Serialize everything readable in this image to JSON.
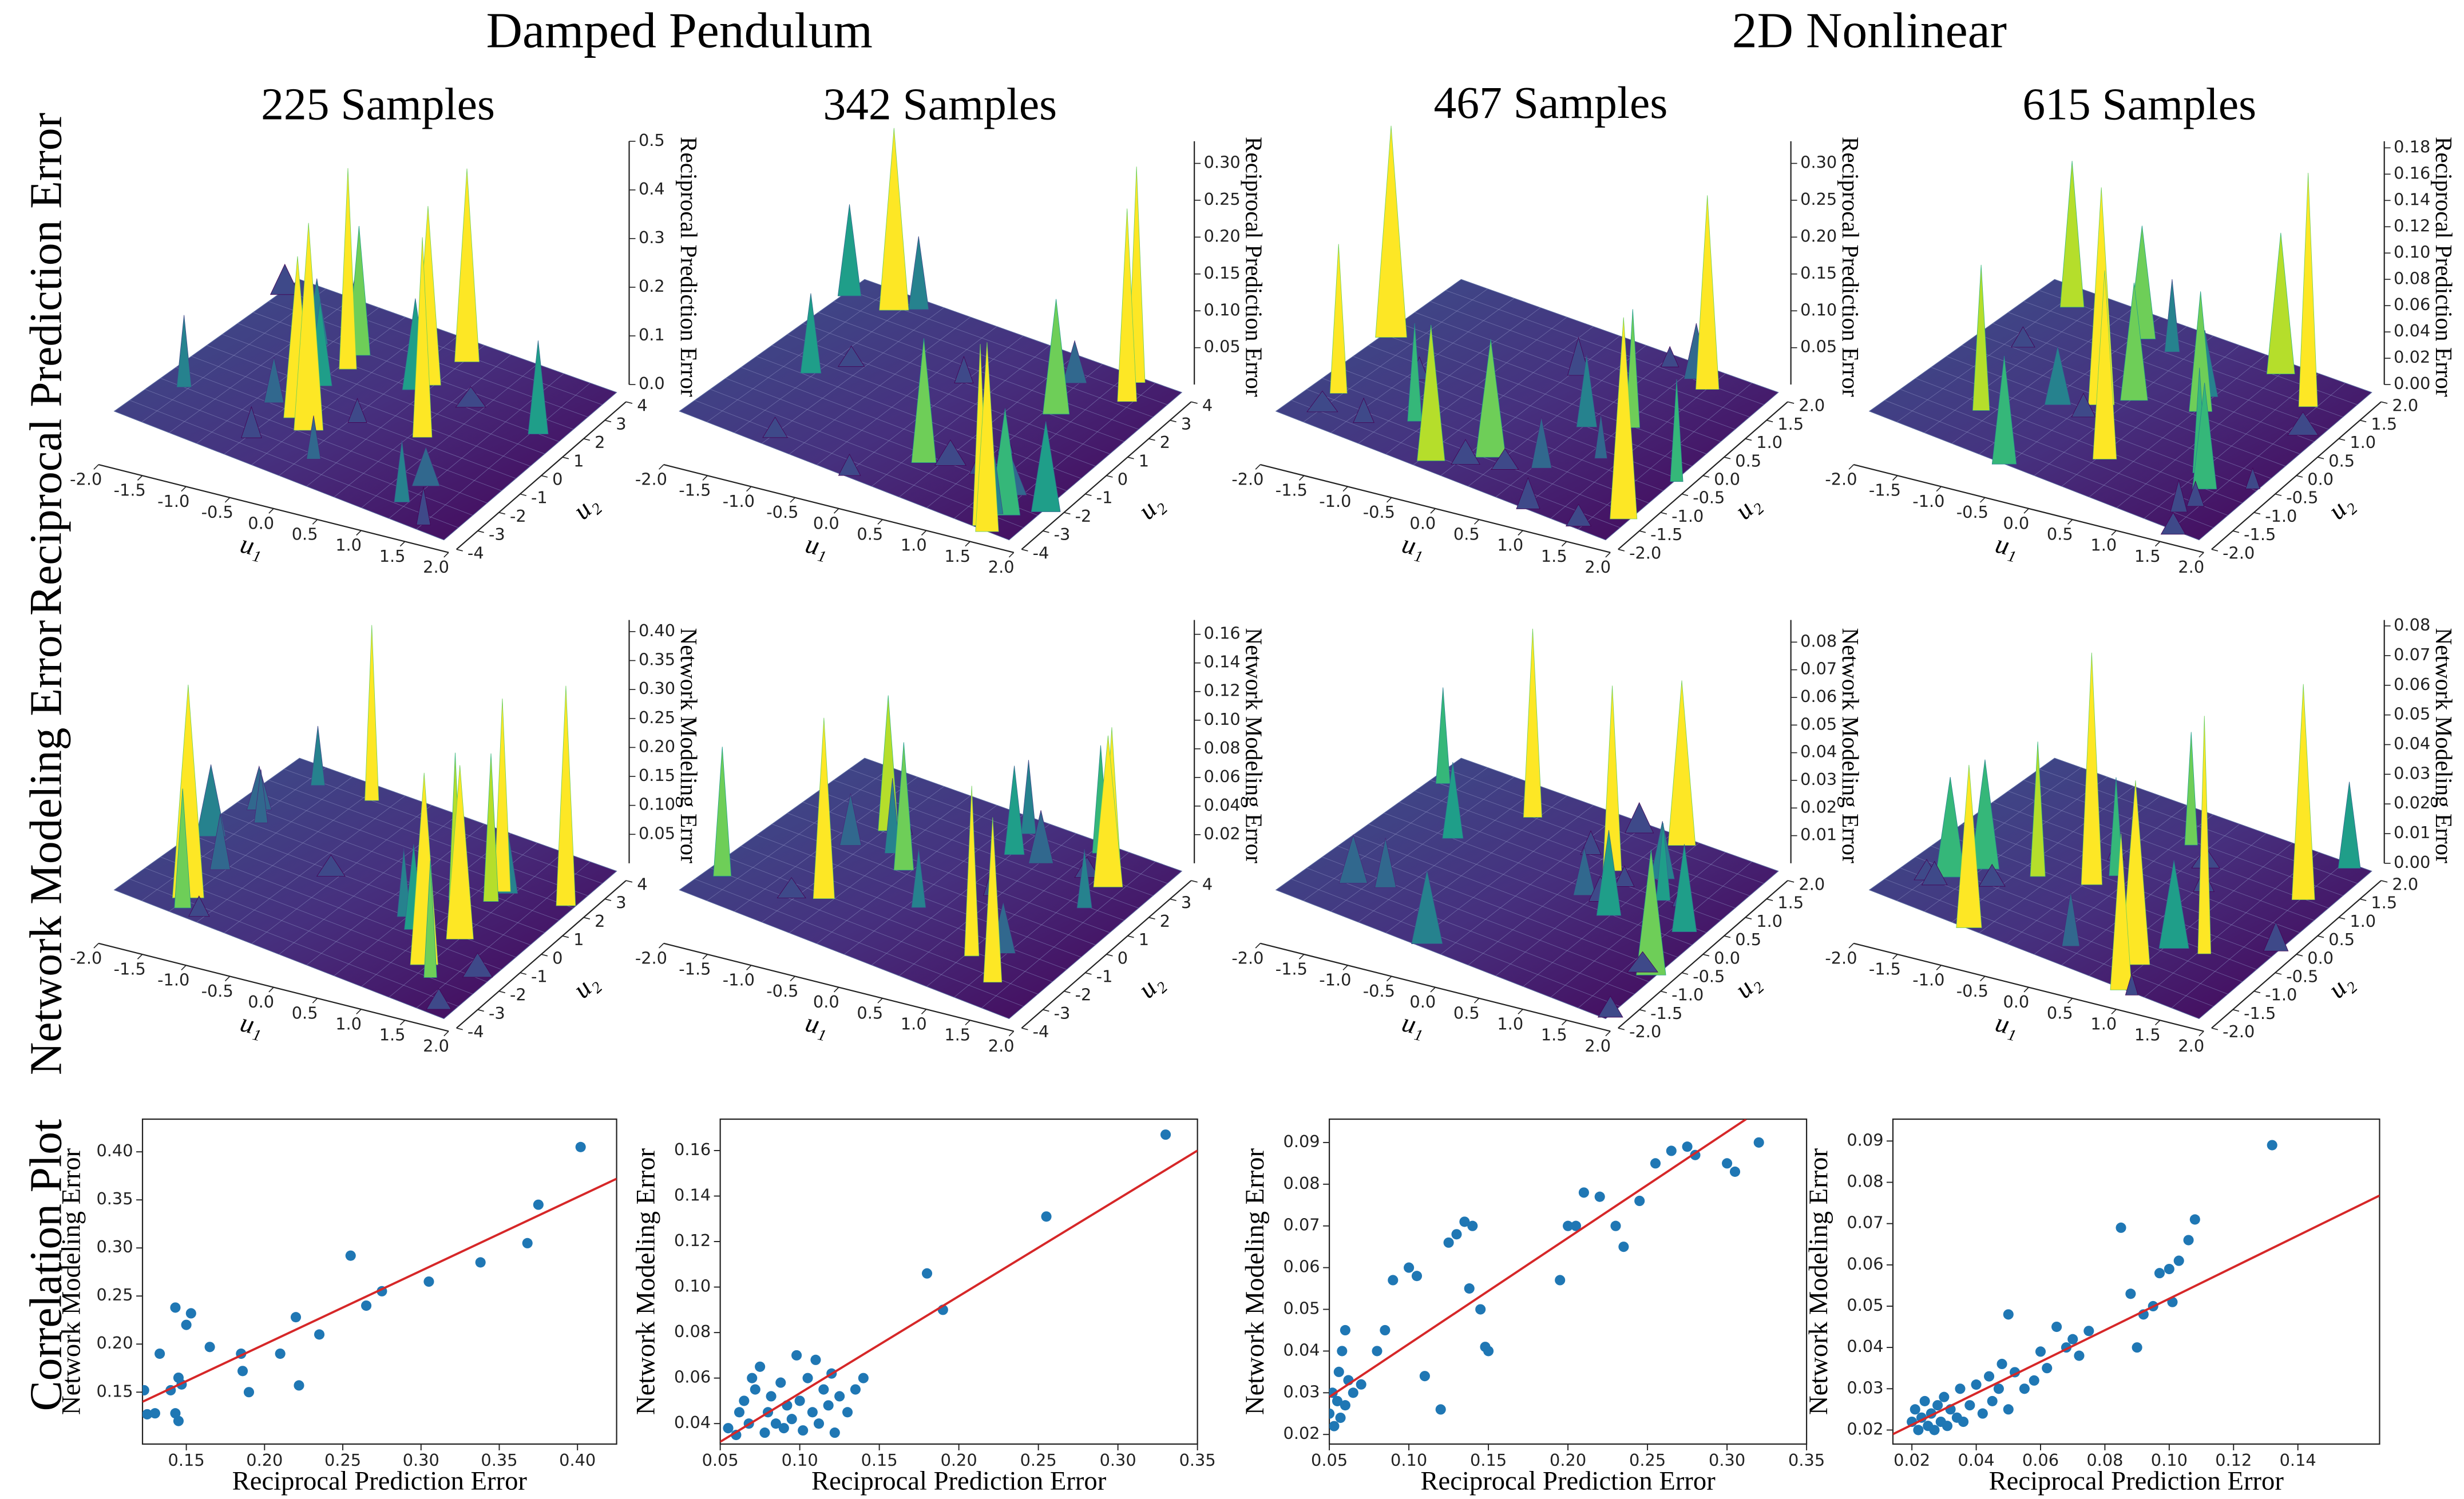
{
  "figure": {
    "group_titles": [
      "Damped Pendulum",
      "2D Nonlinear"
    ],
    "column_titles": [
      "225 Samples",
      "342 Samples",
      "467 Samples",
      "615 Samples"
    ],
    "row_labels": [
      "Reciprocal Prediction Error",
      "Network Modeling Error",
      "Correlation Plot"
    ]
  },
  "chart_data": [
    {
      "type": "surface3d",
      "colormap": "viridis",
      "xlabel": "u₁",
      "ylabel": "u₂",
      "zlabel": "Reciprocal Prediction Error",
      "xlim": [
        -2,
        2
      ],
      "ylim": [
        -4,
        4
      ],
      "zlim": [
        0,
        0.5
      ],
      "xticks": [
        {
          "value": -2,
          "label": "-2.0"
        },
        -1.5,
        {
          "value": -1,
          "label": "-1.0"
        },
        -0.5,
        {
          "value": 0,
          "label": "0.0"
        },
        0.5,
        {
          "value": 1,
          "label": "1.0"
        },
        1.5,
        {
          "value": 2,
          "label": "2.0"
        }
      ],
      "yticks": [
        -4,
        -3,
        -2,
        -1,
        0,
        1,
        2,
        3,
        4
      ],
      "zticks": [
        {
          "value": 0,
          "label": "0.0"
        },
        0.1,
        0.2,
        0.3,
        0.4,
        0.5
      ]
    },
    {
      "type": "surface3d",
      "colormap": "viridis",
      "xlabel": "u₁",
      "ylabel": "u₂",
      "zlabel": "Reciprocal Prediction Error",
      "xlim": [
        -2,
        2
      ],
      "ylim": [
        -4,
        4
      ],
      "zlim": [
        0,
        0.33
      ],
      "xticks": [
        {
          "value": -2,
          "label": "-2.0"
        },
        -1.5,
        {
          "value": -1,
          "label": "-1.0"
        },
        -0.5,
        {
          "value": 0,
          "label": "0.0"
        },
        0.5,
        {
          "value": 1,
          "label": "1.0"
        },
        1.5,
        {
          "value": 2,
          "label": "2.0"
        }
      ],
      "yticks": [
        -4,
        -3,
        -2,
        -1,
        0,
        1,
        2,
        3,
        4
      ],
      "zticks": [
        0.05,
        {
          "value": 0.1,
          "label": "0.10"
        },
        0.15,
        {
          "value": 0.2,
          "label": "0.20"
        },
        0.25,
        {
          "value": 0.3,
          "label": "0.30"
        }
      ]
    },
    {
      "type": "surface3d",
      "colormap": "viridis",
      "xlabel": "u₁",
      "ylabel": "u₂",
      "zlabel": "Reciprocal Prediction Error",
      "xlim": [
        -2,
        2
      ],
      "ylim": [
        -2,
        2
      ],
      "zlim": [
        0,
        0.33
      ],
      "xticks": [
        {
          "value": -2,
          "label": "-2.0"
        },
        -1.5,
        {
          "value": -1,
          "label": "-1.0"
        },
        -0.5,
        {
          "value": 0,
          "label": "0.0"
        },
        0.5,
        {
          "value": 1,
          "label": "1.0"
        },
        1.5,
        {
          "value": 2,
          "label": "2.0"
        }
      ],
      "yticks": [
        {
          "value": -2,
          "label": "-2.0"
        },
        -1.5,
        {
          "value": -1,
          "label": "-1.0"
        },
        -0.5,
        {
          "value": 0,
          "label": "0.0"
        },
        0.5,
        {
          "value": 1,
          "label": "1.0"
        },
        1.5,
        {
          "value": 2,
          "label": "2.0"
        }
      ],
      "zticks": [
        0.05,
        {
          "value": 0.1,
          "label": "0.10"
        },
        0.15,
        {
          "value": 0.2,
          "label": "0.20"
        },
        0.25,
        {
          "value": 0.3,
          "label": "0.30"
        }
      ]
    },
    {
      "type": "surface3d",
      "colormap": "viridis",
      "xlabel": "u₁",
      "ylabel": "u₂",
      "zlabel": "Reciprocal Prediction Error",
      "xlim": [
        -2,
        2
      ],
      "ylim": [
        -2,
        2
      ],
      "zlim": [
        0,
        0.185
      ],
      "xticks": [
        {
          "value": -2,
          "label": "-2.0"
        },
        -1.5,
        {
          "value": -1,
          "label": "-1.0"
        },
        -0.5,
        {
          "value": 0,
          "label": "0.0"
        },
        0.5,
        {
          "value": 1,
          "label": "1.0"
        },
        1.5,
        {
          "value": 2,
          "label": "2.0"
        }
      ],
      "yticks": [
        {
          "value": -2,
          "label": "-2.0"
        },
        -1.5,
        {
          "value": -1,
          "label": "-1.0"
        },
        -0.5,
        {
          "value": 0,
          "label": "0.0"
        },
        0.5,
        {
          "value": 1,
          "label": "1.0"
        },
        1.5,
        {
          "value": 2,
          "label": "2.0"
        }
      ],
      "zticks": [
        {
          "value": 0,
          "label": "0.00"
        },
        0.02,
        0.04,
        0.06,
        0.08,
        {
          "value": 0.1,
          "label": "0.10"
        },
        0.12,
        0.14,
        0.16,
        0.18
      ]
    },
    {
      "type": "surface3d",
      "colormap": "viridis",
      "xlabel": "u₁",
      "ylabel": "u₂",
      "zlabel": "Network Modeling Error",
      "xlim": [
        -2,
        2
      ],
      "ylim": [
        -4,
        4
      ],
      "zlim": [
        0,
        0.42
      ],
      "xticks": [
        {
          "value": -2,
          "label": "-2.0"
        },
        -1.5,
        {
          "value": -1,
          "label": "-1.0"
        },
        -0.5,
        {
          "value": 0,
          "label": "0.0"
        },
        0.5,
        {
          "value": 1,
          "label": "1.0"
        },
        1.5,
        {
          "value": 2,
          "label": "2.0"
        }
      ],
      "yticks": [
        -4,
        -3,
        -2,
        -1,
        0,
        1,
        2,
        3,
        4
      ],
      "zticks": [
        0.05,
        {
          "value": 0.1,
          "label": "0.10"
        },
        0.15,
        {
          "value": 0.2,
          "label": "0.20"
        },
        0.25,
        {
          "value": 0.3,
          "label": "0.30"
        },
        0.35,
        {
          "value": 0.4,
          "label": "0.40"
        }
      ]
    },
    {
      "type": "surface3d",
      "colormap": "viridis",
      "xlabel": "u₁",
      "ylabel": "u₂",
      "zlabel": "Network Modeling Error",
      "xlim": [
        -2,
        2
      ],
      "ylim": [
        -4,
        4
      ],
      "zlim": [
        0,
        0.17
      ],
      "xticks": [
        {
          "value": -2,
          "label": "-2.0"
        },
        -1.5,
        {
          "value": -1,
          "label": "-1.0"
        },
        -0.5,
        {
          "value": 0,
          "label": "0.0"
        },
        0.5,
        {
          "value": 1,
          "label": "1.0"
        },
        1.5,
        {
          "value": 2,
          "label": "2.0"
        }
      ],
      "yticks": [
        -4,
        -3,
        -2,
        -1,
        0,
        1,
        2,
        3,
        4
      ],
      "zticks": [
        0.02,
        0.04,
        0.06,
        0.08,
        {
          "value": 0.1,
          "label": "0.10"
        },
        0.12,
        0.14,
        0.16
      ]
    },
    {
      "type": "surface3d",
      "colormap": "viridis",
      "xlabel": "u₁",
      "ylabel": "u₂",
      "zlabel": "Network Modeling Error",
      "xlim": [
        -2,
        2
      ],
      "ylim": [
        -2,
        2
      ],
      "zlim": [
        0,
        0.088
      ],
      "xticks": [
        {
          "value": -2,
          "label": "-2.0"
        },
        -1.5,
        {
          "value": -1,
          "label": "-1.0"
        },
        -0.5,
        {
          "value": 0,
          "label": "0.0"
        },
        0.5,
        {
          "value": 1,
          "label": "1.0"
        },
        1.5,
        {
          "value": 2,
          "label": "2.0"
        }
      ],
      "yticks": [
        {
          "value": -2,
          "label": "-2.0"
        },
        -1.5,
        {
          "value": -1,
          "label": "-1.0"
        },
        -0.5,
        {
          "value": 0,
          "label": "0.0"
        },
        0.5,
        {
          "value": 1,
          "label": "1.0"
        },
        1.5,
        {
          "value": 2,
          "label": "2.0"
        }
      ],
      "zticks": [
        0.01,
        0.02,
        0.03,
        0.04,
        0.05,
        0.06,
        0.07,
        0.08
      ]
    },
    {
      "type": "surface3d",
      "colormap": "viridis",
      "xlabel": "u₁",
      "ylabel": "u₂",
      "zlabel": "Network Modeling Error",
      "xlim": [
        -2,
        2
      ],
      "ylim": [
        -2,
        2
      ],
      "zlim": [
        0,
        0.082
      ],
      "xticks": [
        {
          "value": -2,
          "label": "-2.0"
        },
        -1.5,
        {
          "value": -1,
          "label": "-1.0"
        },
        -0.5,
        {
          "value": 0,
          "label": "0.0"
        },
        0.5,
        {
          "value": 1,
          "label": "1.0"
        },
        1.5,
        {
          "value": 2,
          "label": "2.0"
        }
      ],
      "yticks": [
        {
          "value": -2,
          "label": "-2.0"
        },
        -1.5,
        {
          "value": -1,
          "label": "-1.0"
        },
        -0.5,
        {
          "value": 0,
          "label": "0.0"
        },
        0.5,
        {
          "value": 1,
          "label": "1.0"
        },
        1.5,
        {
          "value": 2,
          "label": "2.0"
        }
      ],
      "zticks": [
        {
          "value": 0,
          "label": "0.00"
        },
        0.01,
        0.02,
        0.03,
        0.04,
        0.05,
        0.06,
        0.07,
        0.08
      ]
    },
    {
      "type": "scatter",
      "xlabel": "Reciprocal Prediction Error",
      "ylabel": "Network Modeling Error",
      "color": "#1f77b4",
      "xlim": [
        0.122,
        0.425
      ],
      "ylim": [
        0.096,
        0.434
      ],
      "xticks": [
        0.15,
        {
          "value": 0.2,
          "label": "0.20"
        },
        0.25,
        {
          "value": 0.3,
          "label": "0.30"
        },
        0.35,
        {
          "value": 0.4,
          "label": "0.40"
        }
      ],
      "yticks": [
        0.15,
        {
          "value": 0.2,
          "label": "0.20"
        },
        0.25,
        {
          "value": 0.3,
          "label": "0.30"
        },
        0.35,
        {
          "value": 0.4,
          "label": "0.40"
        }
      ],
      "x": [
        0.123,
        0.125,
        0.13,
        0.133,
        0.14,
        0.143,
        0.145,
        0.143,
        0.145,
        0.147,
        0.15,
        0.153,
        0.165,
        0.185,
        0.186,
        0.19,
        0.21,
        0.22,
        0.222,
        0.235,
        0.255,
        0.265,
        0.275,
        0.305,
        0.338,
        0.368,
        0.375,
        0.402
      ],
      "y": [
        0.152,
        0.127,
        0.128,
        0.19,
        0.152,
        0.128,
        0.12,
        0.238,
        0.165,
        0.158,
        0.22,
        0.232,
        0.197,
        0.19,
        0.172,
        0.15,
        0.19,
        0.228,
        0.157,
        0.21,
        0.292,
        0.24,
        0.255,
        0.265,
        0.285,
        0.305,
        0.345,
        0.405
      ],
      "fit_line": {
        "color": "#d62728",
        "x": [
          0.122,
          0.425
        ],
        "y": [
          0.14,
          0.372
        ]
      }
    },
    {
      "type": "scatter",
      "xlabel": "Reciprocal Prediction Error",
      "ylabel": "Network Modeling Error",
      "color": "#1f77b4",
      "xlim": [
        0.05,
        0.35
      ],
      "ylim": [
        0.031,
        0.1738
      ],
      "xticks": [
        0.05,
        {
          "value": 0.1,
          "label": "0.10"
        },
        0.15,
        {
          "value": 0.2,
          "label": "0.20"
        },
        0.25,
        {
          "value": 0.3,
          "label": "0.30"
        },
        0.35
      ],
      "yticks": [
        0.04,
        0.06,
        0.08,
        {
          "value": 0.1,
          "label": "0.10"
        },
        0.12,
        0.14,
        0.16
      ],
      "x": [
        0.055,
        0.06,
        0.062,
        0.065,
        0.068,
        0.07,
        0.072,
        0.075,
        0.078,
        0.08,
        0.082,
        0.085,
        0.088,
        0.09,
        0.092,
        0.095,
        0.098,
        0.1,
        0.102,
        0.105,
        0.108,
        0.11,
        0.112,
        0.115,
        0.118,
        0.12,
        0.122,
        0.125,
        0.13,
        0.135,
        0.14,
        0.18,
        0.19,
        0.255,
        0.33
      ],
      "y": [
        0.038,
        0.035,
        0.045,
        0.05,
        0.04,
        0.06,
        0.055,
        0.065,
        0.036,
        0.045,
        0.052,
        0.04,
        0.058,
        0.038,
        0.048,
        0.042,
        0.07,
        0.05,
        0.037,
        0.06,
        0.045,
        0.068,
        0.04,
        0.055,
        0.048,
        0.062,
        0.036,
        0.052,
        0.045,
        0.055,
        0.06,
        0.106,
        0.09,
        0.131,
        0.167
      ],
      "fit_line": {
        "color": "#d62728",
        "x": [
          0.05,
          0.35
        ],
        "y": [
          0.032,
          0.16
        ]
      }
    },
    {
      "type": "scatter",
      "xlabel": "Reciprocal Prediction Error",
      "ylabel": "Network Modeling Error",
      "color": "#1f77b4",
      "xlim": [
        0.05,
        0.35
      ],
      "ylim": [
        0.0177,
        0.0956
      ],
      "xticks": [
        0.05,
        {
          "value": 0.1,
          "label": "0.10"
        },
        0.15,
        {
          "value": 0.2,
          "label": "0.20"
        },
        0.25,
        {
          "value": 0.3,
          "label": "0.30"
        },
        0.35
      ],
      "yticks": [
        0.02,
        0.03,
        0.04,
        0.05,
        0.06,
        0.07,
        0.08,
        0.09
      ],
      "x": [
        0.05,
        0.052,
        0.053,
        0.055,
        0.056,
        0.057,
        0.058,
        0.06,
        0.06,
        0.062,
        0.065,
        0.07,
        0.08,
        0.085,
        0.09,
        0.1,
        0.105,
        0.11,
        0.12,
        0.125,
        0.13,
        0.135,
        0.14,
        0.138,
        0.145,
        0.148,
        0.15,
        0.195,
        0.2,
        0.205,
        0.21,
        0.22,
        0.23,
        0.235,
        0.245,
        0.255,
        0.265,
        0.275,
        0.28,
        0.3,
        0.305,
        0.32
      ],
      "y": [
        0.025,
        0.03,
        0.022,
        0.028,
        0.035,
        0.024,
        0.04,
        0.045,
        0.027,
        0.033,
        0.03,
        0.032,
        0.04,
        0.045,
        0.057,
        0.06,
        0.058,
        0.034,
        0.026,
        0.066,
        0.068,
        0.071,
        0.07,
        0.055,
        0.05,
        0.041,
        0.04,
        0.057,
        0.07,
        0.07,
        0.078,
        0.077,
        0.07,
        0.065,
        0.076,
        0.085,
        0.088,
        0.089,
        0.087,
        0.085,
        0.083,
        0.09
      ],
      "fit_line": {
        "color": "#d62728",
        "x": [
          0.05,
          0.312
        ],
        "y": [
          0.029,
          0.0956
        ]
      }
    },
    {
      "type": "scatter",
      "xlabel": "Reciprocal Prediction Error",
      "ylabel": "Network Modeling Error",
      "color": "#1f77b4",
      "xlim": [
        0.0141,
        0.1654
      ],
      "ylim": [
        0.0166,
        0.0953
      ],
      "xticks": [
        0.02,
        0.04,
        0.06,
        0.08,
        {
          "value": 0.1,
          "label": "0.10"
        },
        0.12,
        0.14
      ],
      "yticks": [
        0.02,
        0.03,
        0.04,
        0.05,
        0.06,
        0.07,
        0.08,
        0.09
      ],
      "x": [
        0.02,
        0.021,
        0.022,
        0.023,
        0.024,
        0.025,
        0.026,
        0.027,
        0.028,
        0.029,
        0.03,
        0.031,
        0.032,
        0.034,
        0.035,
        0.036,
        0.038,
        0.04,
        0.042,
        0.044,
        0.045,
        0.047,
        0.048,
        0.05,
        0.05,
        0.052,
        0.055,
        0.058,
        0.06,
        0.062,
        0.065,
        0.068,
        0.07,
        0.072,
        0.075,
        0.085,
        0.088,
        0.09,
        0.092,
        0.095,
        0.097,
        0.1,
        0.101,
        0.103,
        0.106,
        0.108,
        0.132
      ],
      "y": [
        0.022,
        0.025,
        0.02,
        0.023,
        0.027,
        0.021,
        0.024,
        0.02,
        0.026,
        0.022,
        0.028,
        0.021,
        0.025,
        0.023,
        0.03,
        0.022,
        0.026,
        0.031,
        0.024,
        0.033,
        0.027,
        0.03,
        0.036,
        0.048,
        0.025,
        0.034,
        0.03,
        0.032,
        0.039,
        0.035,
        0.045,
        0.04,
        0.042,
        0.038,
        0.044,
        0.069,
        0.053,
        0.04,
        0.048,
        0.05,
        0.058,
        0.059,
        0.051,
        0.061,
        0.066,
        0.071,
        0.089
      ],
      "fit_line": {
        "color": "#d62728",
        "x": [
          0.0141,
          0.1654
        ],
        "y": [
          0.019,
          0.0768
        ]
      }
    }
  ]
}
